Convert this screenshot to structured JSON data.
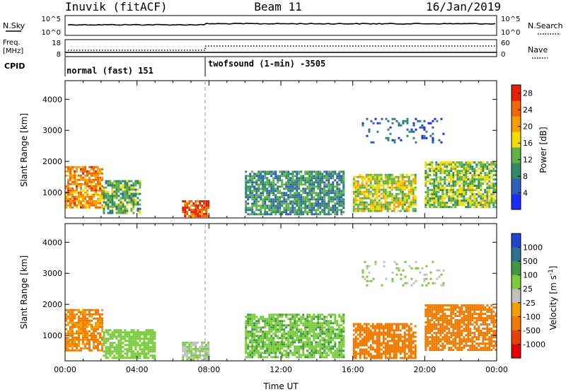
{
  "header": {
    "station": "Inuvik (fitACF)",
    "beam": "Beam 11",
    "date": "16/Jan/2019"
  },
  "panels": {
    "sky_search": {
      "left_label": "N.Sky",
      "right_label": "N.Search",
      "left_ticks": [
        "10^5",
        "10^0"
      ],
      "right_ticks": [
        "10^5",
        "10^0"
      ]
    },
    "freq_nave": {
      "left_label_1": "Freq.",
      "left_label_2": "[MHz]",
      "right_label": "Nave",
      "left_ticks": [
        "18",
        "8"
      ],
      "right_ticks": [
        "60",
        "0"
      ]
    },
    "cpid": {
      "label": "CPID",
      "segments": [
        "normal (fast) 151",
        "twofsound (1-min) -3505"
      ]
    }
  },
  "colors": {
    "power_bar": [
      "#1a2cff",
      "#2f5fb8",
      "#2f8a66",
      "#5fb24a",
      "#f2dc00",
      "#f5a000",
      "#f06800",
      "#e62000"
    ],
    "velocity_bar": [
      "#2244cc",
      "#2f6f8f",
      "#3f9a3f",
      "#7acc3c",
      "#c0c0c0",
      "#f2a000",
      "#f07a00",
      "#e84000",
      "#e60000"
    ]
  },
  "chart_data": [
    {
      "type": "heatmap",
      "title": "Power",
      "ylabel": "Slant Range [km]",
      "xlabel": "",
      "xlim": [
        "00:00",
        "24:00"
      ],
      "ylim": [
        180,
        4600
      ],
      "y_ticks": [
        "1000",
        "2000",
        "3000",
        "4000"
      ],
      "colorbar": {
        "label": "Power [dB]",
        "ticks": [
          "4",
          "8",
          "12",
          "16",
          "20",
          "24",
          "28"
        ],
        "range": [
          0,
          30
        ]
      },
      "regions": [
        {
          "t_start": 0.0,
          "t_end": 2.1,
          "r_min": 550,
          "r_max": 1850,
          "value": 22
        },
        {
          "t_start": 2.1,
          "t_end": 4.2,
          "r_min": 350,
          "r_max": 1400,
          "value": 12
        },
        {
          "t_start": 6.5,
          "t_end": 8.0,
          "r_min": 250,
          "r_max": 750,
          "value": 26
        },
        {
          "t_start": 10.0,
          "t_end": 15.5,
          "r_min": 300,
          "r_max": 1700,
          "value": 10
        },
        {
          "t_start": 16.0,
          "t_end": 19.5,
          "r_min": 400,
          "r_max": 1600,
          "value": 16
        },
        {
          "t_start": 20.0,
          "t_end": 24.0,
          "r_min": 500,
          "r_max": 2000,
          "value": 14
        },
        {
          "t_start": 16.5,
          "t_end": 21.0,
          "r_min": 2600,
          "r_max": 3400,
          "value": 6
        }
      ]
    },
    {
      "type": "heatmap",
      "title": "Velocity",
      "ylabel": "Slant Range [km]",
      "xlabel": "Time UT",
      "xlim": [
        "00:00",
        "24:00"
      ],
      "ylim": [
        180,
        4600
      ],
      "x_ticks": [
        "00:00",
        "04:00",
        "08:00",
        "12:00",
        "16:00",
        "20:00",
        "00:00"
      ],
      "y_ticks": [
        "1000",
        "2000",
        "3000",
        "4000"
      ],
      "colorbar": {
        "label": "Velocity [m s^-1]",
        "ticks": [
          "1000",
          "500",
          "100",
          "25",
          "-25",
          "-100",
          "-500",
          "-1000"
        ]
      },
      "regions": [
        {
          "t_start": 0.0,
          "t_end": 2.1,
          "r_min": 550,
          "r_max": 1850,
          "value": -120
        },
        {
          "t_start": 2.1,
          "t_end": 5.0,
          "r_min": 300,
          "r_max": 1200,
          "value": 60
        },
        {
          "t_start": 6.5,
          "t_end": 8.0,
          "r_min": 250,
          "r_max": 800,
          "value": 20
        },
        {
          "t_start": 10.0,
          "t_end": 15.5,
          "r_min": 300,
          "r_max": 1700,
          "value": 80
        },
        {
          "t_start": 16.0,
          "t_end": 19.5,
          "r_min": 300,
          "r_max": 1400,
          "value": -200
        },
        {
          "t_start": 20.0,
          "t_end": 24.0,
          "r_min": 500,
          "r_max": 2000,
          "value": -300
        },
        {
          "t_start": 16.5,
          "t_end": 21.0,
          "r_min": 2600,
          "r_max": 3400,
          "value": 30
        }
      ]
    }
  ]
}
